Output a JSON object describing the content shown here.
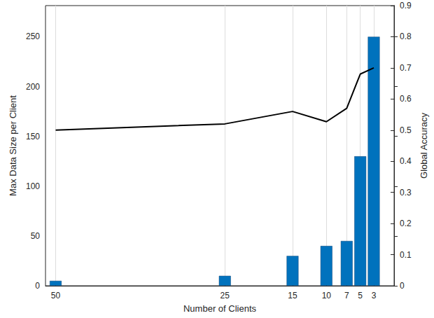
{
  "chart_data": {
    "type": "bar",
    "x_label": "Number of Clients",
    "y_label": "Max Data Size per Client",
    "y2_label": "Global Accuracy",
    "x": [
      50,
      25,
      15,
      10,
      7,
      5,
      3
    ],
    "xlim": [
      51.5,
      0
    ],
    "xticks": [
      50,
      25,
      15,
      10,
      7,
      5,
      3
    ],
    "ylim": [
      0,
      281.25
    ],
    "yticks": [
      0,
      50,
      100,
      150,
      200,
      250
    ],
    "y2lim": [
      0,
      0.9
    ],
    "y2ticks": [
      0,
      0.1,
      0.2,
      0.3,
      0.4,
      0.5,
      0.6,
      0.7,
      0.8,
      0.9
    ],
    "grid": true,
    "series": [
      {
        "type": "bar",
        "color": "#0072bd",
        "values": [
          5,
          10,
          30,
          40,
          45,
          130,
          250
        ]
      },
      {
        "type": "line",
        "axis": "y2",
        "color": "#000000",
        "line_style": "solid",
        "values": [
          0.5,
          0.52,
          0.56,
          0.527,
          0.57,
          0.68,
          0.7
        ]
      }
    ]
  }
}
